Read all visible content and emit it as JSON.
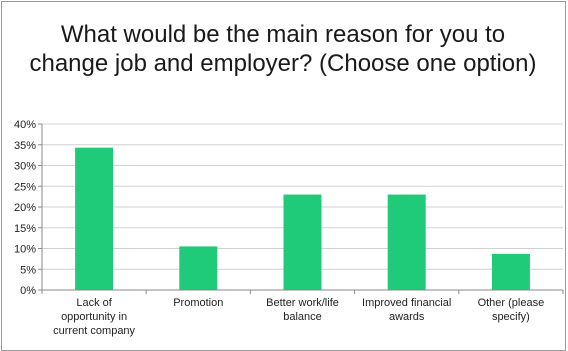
{
  "chart_data": {
    "type": "bar",
    "title": "What would be the main reason for you to change job and employer? (Choose one option)",
    "categories": [
      [
        "Lack of",
        "opportunity in",
        "current company"
      ],
      [
        "Promotion"
      ],
      [
        "Better work/life",
        "balance"
      ],
      [
        "Improved financial",
        "awards"
      ],
      [
        "Other (please",
        "specify)"
      ]
    ],
    "values": [
      34.3,
      10.5,
      23.0,
      23.0,
      8.7
    ],
    "ylim": [
      0,
      40
    ],
    "yticks": [
      "0%",
      "5%",
      "10%",
      "15%",
      "20%",
      "25%",
      "30%",
      "35%",
      "40%"
    ],
    "grid": true,
    "colors": {
      "bar": "#1fca78",
      "grid": "#d0d0d0",
      "axis": "#8a8a8a"
    }
  }
}
